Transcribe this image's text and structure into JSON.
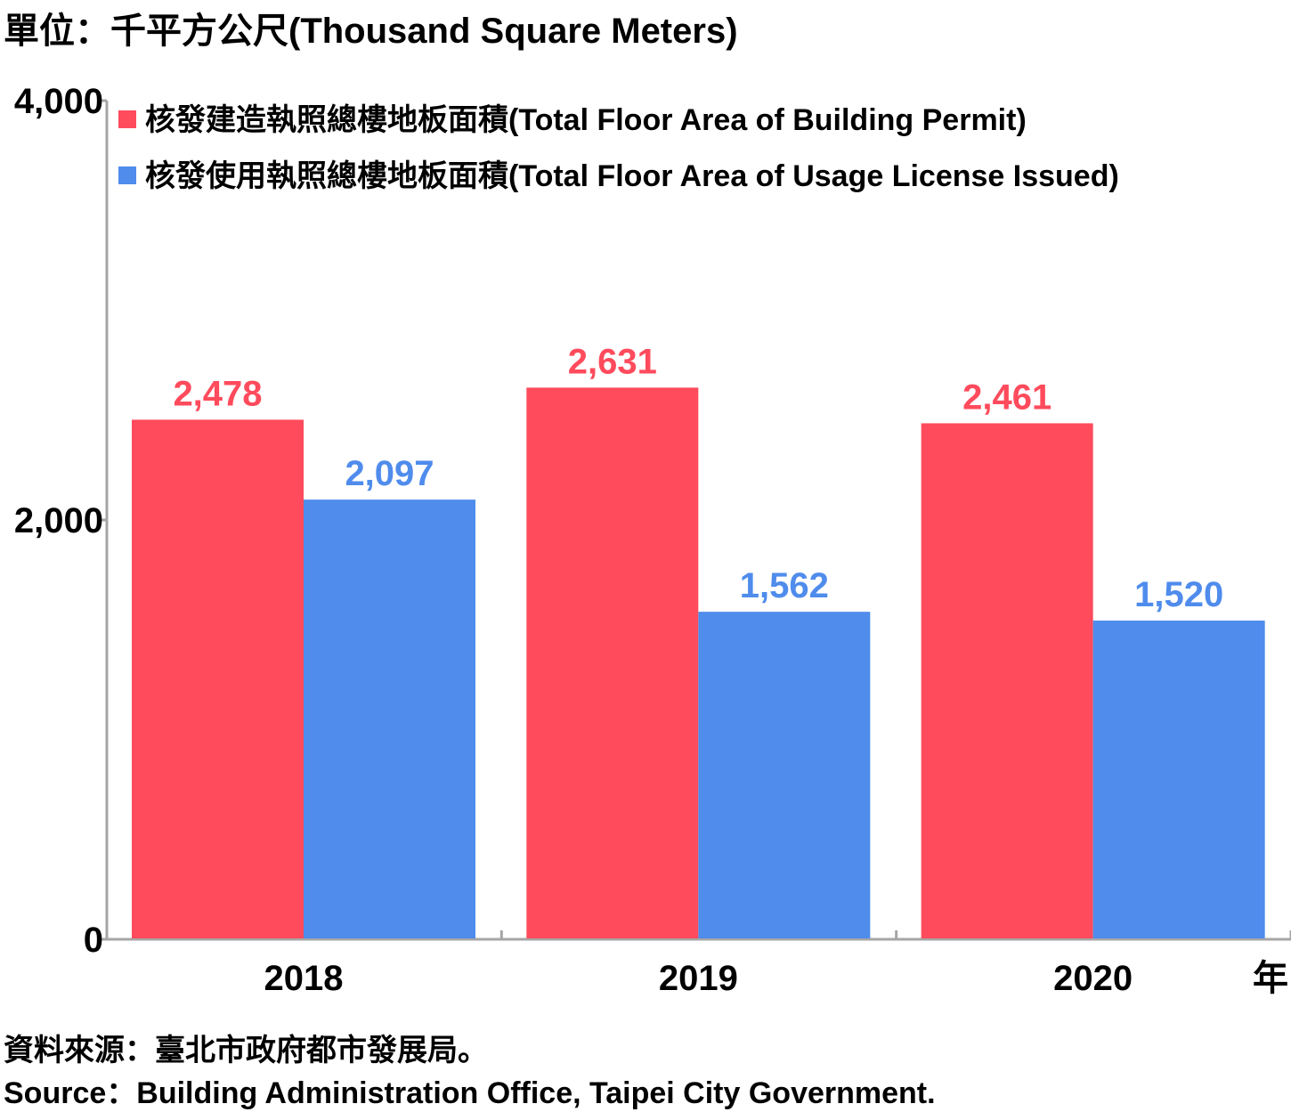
{
  "header": {
    "unit_text": "單位：千平方公尺(Thousand Square Meters)"
  },
  "footer": {
    "source_zh": "資料來源：臺北市政府都市發展局。",
    "source_en": "Source：Building Administration Office, Taipei City Government."
  },
  "chart_data": {
    "type": "bar",
    "categories": [
      "2018",
      "2019",
      "2020"
    ],
    "x_unit_label": "年",
    "series": [
      {
        "name": "核發建造執照總樓地板面積(Total Floor Area of Building Permit)",
        "color": "#ff4b5c",
        "values": [
          2478,
          2631,
          2461
        ],
        "labels": [
          "2,478",
          "2,631",
          "2,461"
        ]
      },
      {
        "name": "核發使用執照總樓地板面積(Total Floor Area of Usage License Issued)",
        "color": "#4f8cec",
        "values": [
          2097,
          1562,
          1520
        ],
        "labels": [
          "2,097",
          "1,562",
          "1,520"
        ]
      }
    ],
    "ylim": [
      0,
      4000
    ],
    "yticks": [
      0,
      2000,
      4000
    ],
    "ytick_labels": [
      "0",
      "2,000",
      "4,000"
    ],
    "grid": false,
    "legend_position": "top-left"
  }
}
